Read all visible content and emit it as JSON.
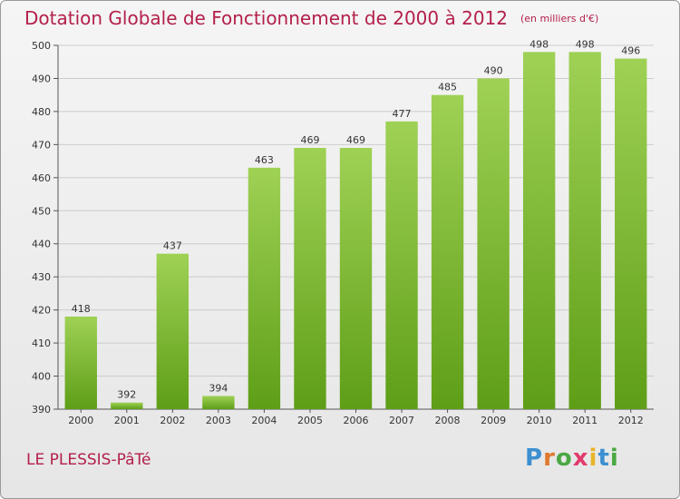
{
  "header": {
    "title": "Dotation Globale de Fonctionnement de 2000 à 2012",
    "unit": "(en milliers d'€)"
  },
  "footer": {
    "commune": "LE PLESSIS-PâTé",
    "logo": "Proxiti"
  },
  "colors": {
    "title": "#b3204a",
    "bar_top": "#9fd155",
    "bar_bottom": "#5e9e17",
    "grid": "#cccccc"
  },
  "chart_data": {
    "type": "bar",
    "title": "Dotation Globale de Fonctionnement de 2000 à 2012",
    "subtitle": "(en milliers d'€)",
    "xlabel": "",
    "ylabel": "",
    "categories": [
      "2000",
      "2001",
      "2002",
      "2003",
      "2004",
      "2005",
      "2006",
      "2007",
      "2008",
      "2009",
      "2010",
      "2011",
      "2012"
    ],
    "values": [
      418,
      392,
      437,
      394,
      463,
      469,
      469,
      477,
      485,
      490,
      498,
      498,
      496
    ],
    "ylim": [
      390,
      500
    ],
    "yticks": [
      390,
      400,
      410,
      420,
      430,
      440,
      450,
      460,
      470,
      480,
      490,
      500
    ],
    "grid": true,
    "data_labels": true
  }
}
